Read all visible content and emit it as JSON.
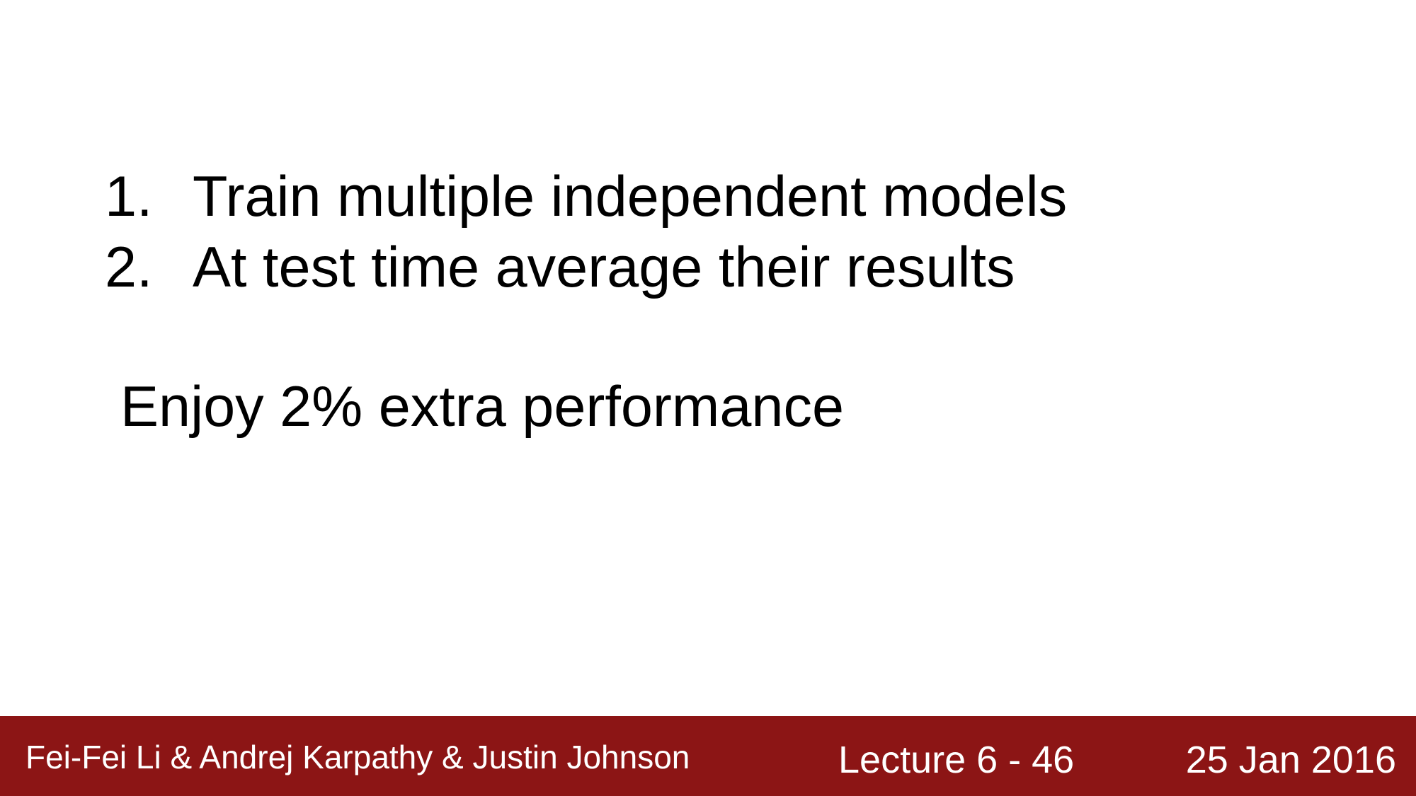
{
  "slide": {
    "list": [
      {
        "number": "1.",
        "text": "Train multiple independent models"
      },
      {
        "number": "2.",
        "text": "At test time average their results"
      }
    ],
    "note": "Enjoy 2% extra performance"
  },
  "footer": {
    "authors": "Fei-Fei Li & Andrej Karpathy & Justin Johnson",
    "lecture": "Lecture 6 - 46",
    "date": "25 Jan 2016",
    "background_color": "#8c1515",
    "text_color": "#ffffff"
  }
}
